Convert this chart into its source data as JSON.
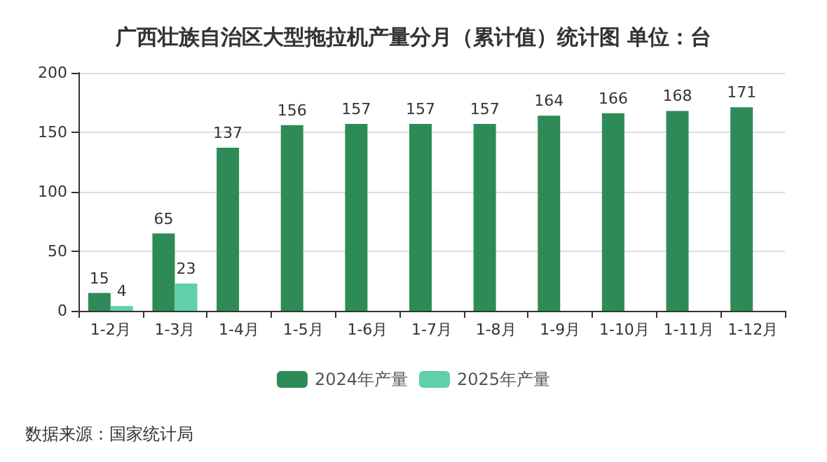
{
  "chart_data": {
    "type": "bar",
    "title": "广西壮族自治区大型拖拉机产量分月（累计值）统计图 单位：台",
    "categories": [
      "1-2月",
      "1-3月",
      "1-4月",
      "1-5月",
      "1-6月",
      "1-7月",
      "1-8月",
      "1-9月",
      "1-10月",
      "1-11月",
      "1-12月"
    ],
    "series": [
      {
        "name": "2024年产量",
        "color": "#2e8b57",
        "values": [
          15,
          65,
          137,
          156,
          157,
          157,
          157,
          164,
          166,
          168,
          171
        ]
      },
      {
        "name": "2025年产量",
        "color": "#5fd0a8",
        "values": [
          4,
          23,
          null,
          null,
          null,
          null,
          null,
          null,
          null,
          null,
          null
        ]
      }
    ],
    "ylim": [
      0,
      200
    ],
    "yticks": [
      0,
      50,
      100,
      150,
      200
    ],
    "grid": "y",
    "legend": "bottom",
    "data_labels": true,
    "annotations": [
      "数据来源：国家统计局"
    ]
  }
}
